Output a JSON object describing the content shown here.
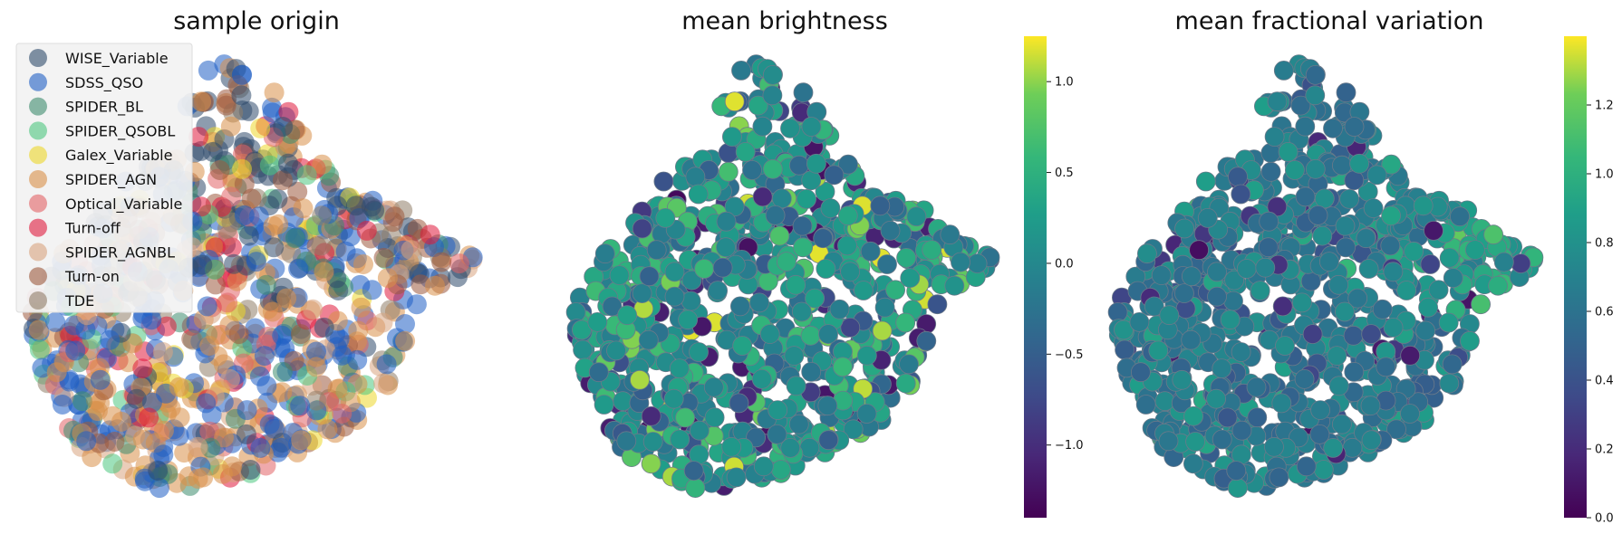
{
  "chart_data": [
    {
      "type": "scatter",
      "title": "sample origin",
      "xlabel": "",
      "ylabel": "",
      "legend": {
        "placement": "top-left",
        "entries": [
          {
            "label": "WISE_Variable",
            "color": "#2f4b6b"
          },
          {
            "label": "SDSS_QSO",
            "color": "#1f5fc4"
          },
          {
            "label": "SPIDER_BL",
            "color": "#3d8c6e"
          },
          {
            "label": "SPIDER_QSOBL",
            "color": "#4cc77f"
          },
          {
            "label": "Galex_Variable",
            "color": "#ecd72a"
          },
          {
            "label": "SPIDER_AGN",
            "color": "#d98f48"
          },
          {
            "label": "Optical_Variable",
            "color": "#e26266"
          },
          {
            "label": "Turn-off",
            "color": "#e01a3d"
          },
          {
            "label": "SPIDER_AGNBL",
            "color": "#d8a47f"
          },
          {
            "label": "Turn-on",
            "color": "#9c5a3e"
          },
          {
            "label": "TDE",
            "color": "#8f7d67"
          }
        ]
      },
      "series_names": [
        "WISE_Variable",
        "SDSS_QSO",
        "SPIDER_BL",
        "SPIDER_QSOBL",
        "Galex_Variable",
        "SPIDER_AGN",
        "Optical_Variable",
        "Turn-off",
        "SPIDER_AGNBL",
        "Turn-on",
        "TDE"
      ],
      "point_count": 900
    },
    {
      "type": "scatter",
      "title": "mean brightness",
      "colorbar": {
        "colormap": "viridis",
        "range": [
          -1.4,
          1.25
        ],
        "ticks": [
          "-1.0",
          "-0.5",
          "0.0",
          "0.5",
          "1.0"
        ]
      },
      "point_count": 900
    },
    {
      "type": "scatter",
      "title": "mean fractional variation",
      "colorbar": {
        "colormap": "viridis",
        "range": [
          0.0,
          1.4
        ],
        "ticks": [
          "0.0",
          "0.2",
          "0.4",
          "0.6",
          "0.8",
          "1.0",
          "1.2"
        ]
      },
      "point_count": 900
    }
  ]
}
